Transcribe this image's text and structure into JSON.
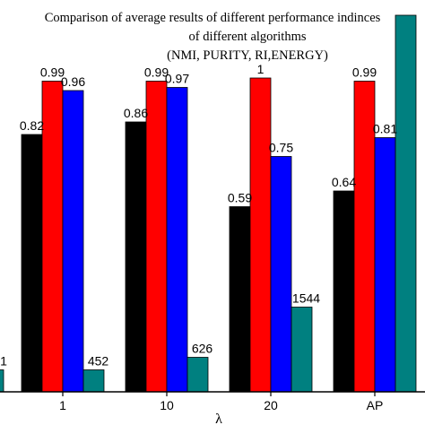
{
  "chart_data": {
    "type": "bar",
    "title_lines": [
      "Comparison of average results of different performance indinces",
      "of different algorithms",
      "(NMI, PURITY, RI,ENERGY)"
    ],
    "xlabel": "λ",
    "ylabel": "",
    "ylim": [
      0,
      1.22
    ],
    "categories": [
      "1",
      "10",
      "20",
      "AP"
    ],
    "series": [
      {
        "color": "#000000",
        "values": [
          0.82,
          0.86,
          0.59,
          0.64
        ],
        "labels": [
          "0.82",
          "0.86",
          "0.59",
          "0.64"
        ]
      },
      {
        "color": "#ff0000",
        "values": [
          0.99,
          0.99,
          1.0,
          0.99
        ],
        "labels": [
          "0.99",
          "0.99",
          "1",
          "0.99"
        ]
      },
      {
        "color": "#0000ff",
        "values": [
          0.96,
          0.97,
          0.75,
          0.81
        ],
        "labels": [
          "0.96",
          "0.97",
          "0.75",
          "0.81"
        ]
      },
      {
        "color": "#008080",
        "values": [
          0.07,
          0.11,
          0.27,
          1.2
        ],
        "labels": [
          "452",
          "626",
          "1544",
          ""
        ]
      }
    ],
    "left_partial": {
      "label": "1",
      "value": 0.07
    },
    "legend": "none",
    "grid": false
  }
}
